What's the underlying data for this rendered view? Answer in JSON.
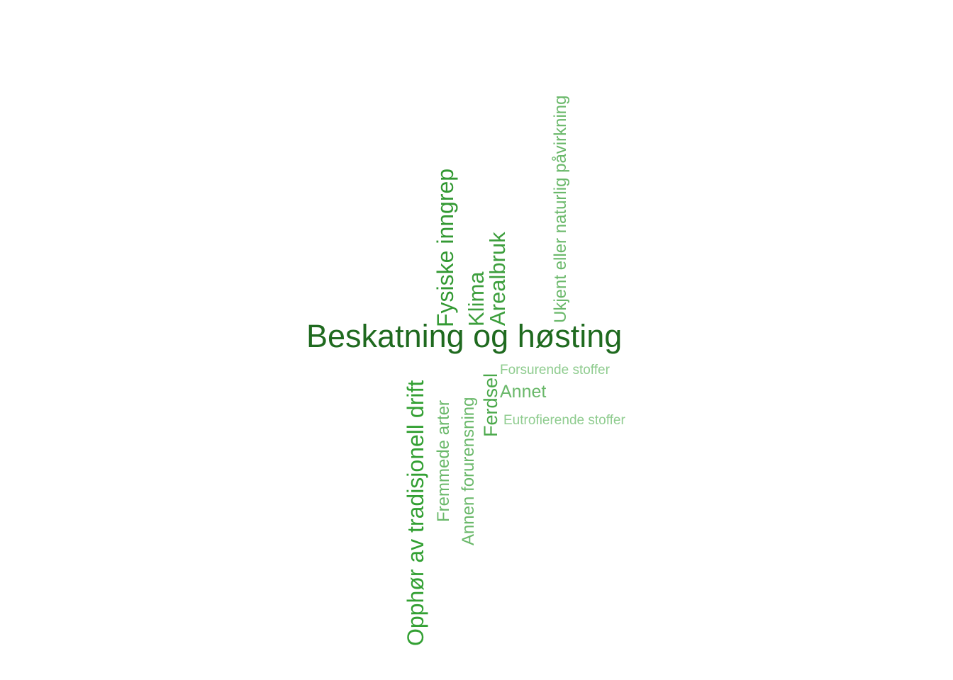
{
  "wordcloud": {
    "words": [
      {
        "text": "Beskatning og høsting",
        "color": "#1f6a1f",
        "orientation": "horizontal"
      },
      {
        "text": "Fysiske inngrep",
        "color": "#339933",
        "orientation": "vertical"
      },
      {
        "text": "Klima",
        "color": "#3c9e3c",
        "orientation": "vertical"
      },
      {
        "text": "Arealbruk",
        "color": "#3c9e3c",
        "orientation": "vertical"
      },
      {
        "text": "Ukjent eller naturlig påvirkning",
        "color": "#6ab86a",
        "orientation": "vertical"
      },
      {
        "text": "Forsurende stoffer",
        "color": "#8fcc8f",
        "orientation": "horizontal"
      },
      {
        "text": "Annet",
        "color": "#6ab86a",
        "orientation": "horizontal"
      },
      {
        "text": "Eutrofierende stoffer",
        "color": "#8fcc8f",
        "orientation": "horizontal"
      },
      {
        "text": "Opphør av tradisjonell drift",
        "color": "#33a033",
        "orientation": "vertical"
      },
      {
        "text": "Fremmede arter",
        "color": "#6ab86a",
        "orientation": "vertical"
      },
      {
        "text": "Annen forurensning",
        "color": "#6ab86a",
        "orientation": "vertical"
      },
      {
        "text": "Ferdsel",
        "color": "#4aa84a",
        "orientation": "vertical"
      }
    ]
  }
}
